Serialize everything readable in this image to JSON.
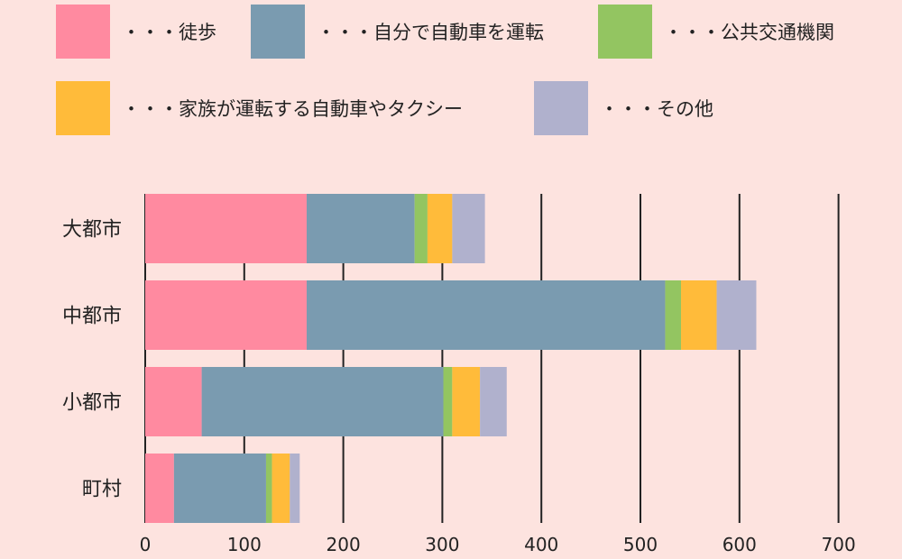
{
  "colors": {
    "background": "#fde3df",
    "walk": "#ff8aa0",
    "own_car": "#7a9bb0",
    "public_transport": "#93c561",
    "family_car_taxi": "#ffbb3a",
    "other": "#b0b1cd",
    "grid": "#222222"
  },
  "legend": [
    {
      "key": "walk",
      "label": "・・・徒歩",
      "color": "#ff8aa0"
    },
    {
      "key": "own_car",
      "label": "・・・自分で自動車を運転",
      "color": "#7a9bb0"
    },
    {
      "key": "public_transport",
      "label": "・・・公共交通機関",
      "color": "#93c561"
    },
    {
      "key": "family_car_taxi",
      "label": "・・・家族が運転する自動車やタクシー",
      "color": "#ffbb3a"
    },
    {
      "key": "other",
      "label": "・・・その他",
      "color": "#b0b1cd"
    }
  ],
  "chart_data": {
    "type": "bar",
    "orientation": "horizontal",
    "stacked": true,
    "categories": [
      "大都市",
      "中都市",
      "小都市",
      "町村"
    ],
    "series": [
      {
        "name": "徒歩",
        "color": "#ff8aa0",
        "values": [
          163,
          163,
          57,
          29
        ]
      },
      {
        "name": "自分で自動車を運転",
        "color": "#7a9bb0",
        "values": [
          109,
          362,
          244,
          93
        ]
      },
      {
        "name": "公共交通機関",
        "color": "#93c561",
        "values": [
          13,
          16,
          9,
          6
        ]
      },
      {
        "name": "家族が運転する自動車やタクシー",
        "color": "#ffbb3a",
        "values": [
          25,
          36,
          28,
          18
        ]
      },
      {
        "name": "その他",
        "color": "#b0b1cd",
        "values": [
          33,
          40,
          27,
          10
        ]
      }
    ],
    "xlim": [
      0,
      700
    ],
    "xticks": [
      0,
      100,
      200,
      300,
      400,
      500,
      600,
      700
    ],
    "grid": "vertical",
    "legend_position": "top"
  }
}
